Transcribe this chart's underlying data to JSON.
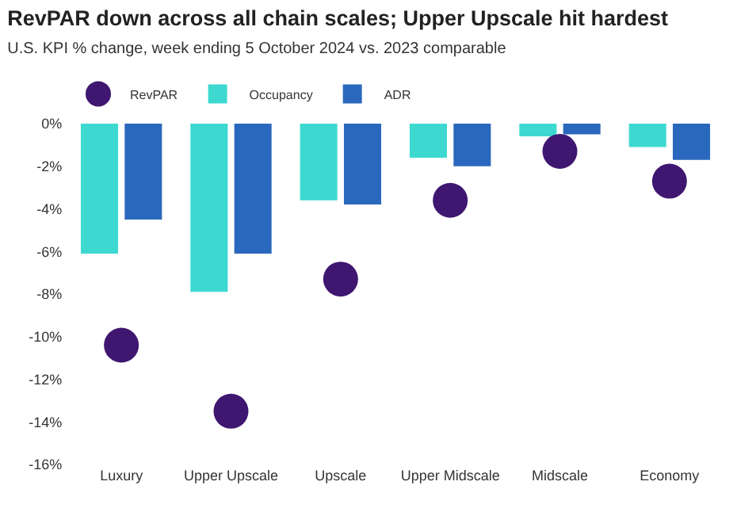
{
  "chart_data": {
    "type": "bar",
    "title": "RevPAR down across all chain scales; Upper Upscale hit hardest",
    "subtitle": "U.S. KPI % change, week ending 5 October 2024 vs. 2023 comparable",
    "categories": [
      "Luxury",
      "Upper Upscale",
      "Upscale",
      "Upper Midscale",
      "Midscale",
      "Economy"
    ],
    "series": [
      {
        "name": "RevPAR",
        "type": "scatter",
        "marker": "circle",
        "color": "#3f1670",
        "values": [
          -10.4,
          -13.5,
          -7.3,
          -3.6,
          -1.3,
          -2.7
        ]
      },
      {
        "name": "Occupancy",
        "color": "#3dd9d0",
        "values": [
          -6.1,
          -7.9,
          -3.6,
          -1.6,
          -0.6,
          -1.1
        ]
      },
      {
        "name": "ADR",
        "color": "#2a68bd",
        "values": [
          -4.5,
          -6.1,
          -3.8,
          -2.0,
          -0.5,
          -1.7
        ]
      }
    ],
    "ylim": [
      -16,
      0
    ],
    "yticks": [
      {
        "value": 0,
        "label": "0%"
      },
      {
        "value": -2,
        "label": "-2%"
      },
      {
        "value": -4,
        "label": "-4%"
      },
      {
        "value": -6,
        "label": "-6%"
      },
      {
        "value": -8,
        "label": "-8%"
      },
      {
        "value": -10,
        "label": "-10%"
      },
      {
        "value": -12,
        "label": "-12%"
      },
      {
        "value": -14,
        "label": "-14%"
      },
      {
        "value": -16,
        "label": "-16%"
      }
    ],
    "legend": "top left"
  }
}
